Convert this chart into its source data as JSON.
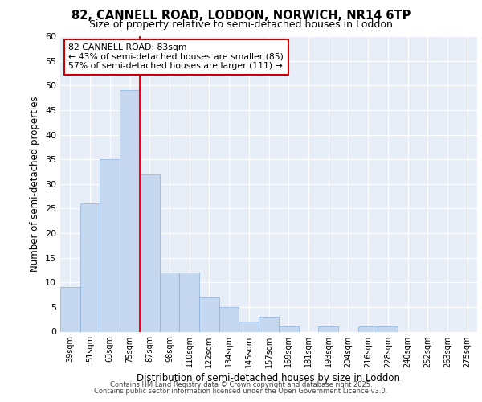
{
  "title1": "82, CANNELL ROAD, LODDON, NORWICH, NR14 6TP",
  "title2": "Size of property relative to semi-detached houses in Loddon",
  "xlabel": "Distribution of semi-detached houses by size in Loddon",
  "ylabel": "Number of semi-detached properties",
  "bar_labels": [
    "39sqm",
    "51sqm",
    "63sqm",
    "75sqm",
    "87sqm",
    "98sqm",
    "110sqm",
    "122sqm",
    "134sqm",
    "145sqm",
    "157sqm",
    "169sqm",
    "181sqm",
    "193sqm",
    "204sqm",
    "216sqm",
    "228sqm",
    "240sqm",
    "252sqm",
    "263sqm",
    "275sqm"
  ],
  "bar_values": [
    9,
    26,
    35,
    49,
    32,
    12,
    12,
    7,
    5,
    2,
    3,
    1,
    0,
    1,
    0,
    1,
    1,
    0,
    0,
    0,
    0
  ],
  "bar_color": "#c5d8f0",
  "bar_edge_color": "#8ab0d8",
  "plot_bg_color": "#e8eef8",
  "fig_bg_color": "#ffffff",
  "grid_color": "#ffffff",
  "red_line_x": 3.5,
  "annotation_title": "82 CANNELL ROAD: 83sqm",
  "annotation_line1": "← 43% of semi-detached houses are smaller (85)",
  "annotation_line2": "57% of semi-detached houses are larger (111) →",
  "annotation_box_color": "#ffffff",
  "annotation_box_edge": "#cc0000",
  "ylim": [
    0,
    60
  ],
  "yticks": [
    0,
    5,
    10,
    15,
    20,
    25,
    30,
    35,
    40,
    45,
    50,
    55,
    60
  ],
  "footer1": "Contains HM Land Registry data © Crown copyright and database right 2025.",
  "footer2": "Contains public sector information licensed under the Open Government Licence v3.0."
}
